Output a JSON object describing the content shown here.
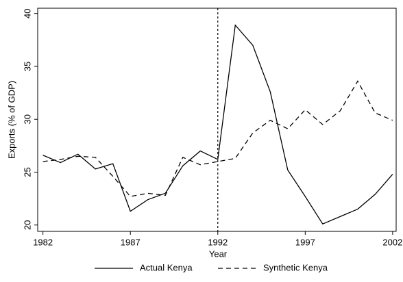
{
  "chart_data": {
    "type": "line",
    "x_label": "Year",
    "y_label": "Exports (% of GDP)",
    "x": [
      1982,
      1983,
      1984,
      1985,
      1986,
      1987,
      1988,
      1989,
      1990,
      1991,
      1992,
      1993,
      1994,
      1995,
      1996,
      1997,
      1998,
      1999,
      2000,
      2001,
      2002
    ],
    "series": [
      {
        "name": "Actual Kenya",
        "color": "#000000",
        "dash": "solid",
        "values": [
          26.6,
          25.9,
          26.7,
          25.3,
          25.8,
          21.3,
          22.4,
          23.0,
          25.6,
          27.0,
          26.2,
          38.9,
          37.0,
          32.6,
          25.2,
          22.7,
          20.1,
          20.8,
          21.5,
          22.9,
          24.8
        ]
      },
      {
        "name": "Synthetic Kenya",
        "color": "#000000",
        "dash": "dashed",
        "values": [
          26.0,
          26.2,
          26.5,
          26.4,
          24.6,
          22.7,
          23.0,
          22.8,
          26.4,
          25.7,
          26.0,
          26.3,
          28.7,
          29.9,
          29.1,
          30.9,
          29.5,
          30.8,
          33.6,
          30.6,
          29.9
        ]
      }
    ],
    "reference_x": 1992,
    "xlim": [
      1981.7,
      2002.2
    ],
    "ylim": [
      19.4,
      40.5
    ],
    "xticks": [
      1982,
      1987,
      1992,
      1997,
      2002
    ],
    "yticks": [
      20,
      25,
      30,
      35,
      40
    ],
    "legend": "bottom",
    "grid": false
  }
}
